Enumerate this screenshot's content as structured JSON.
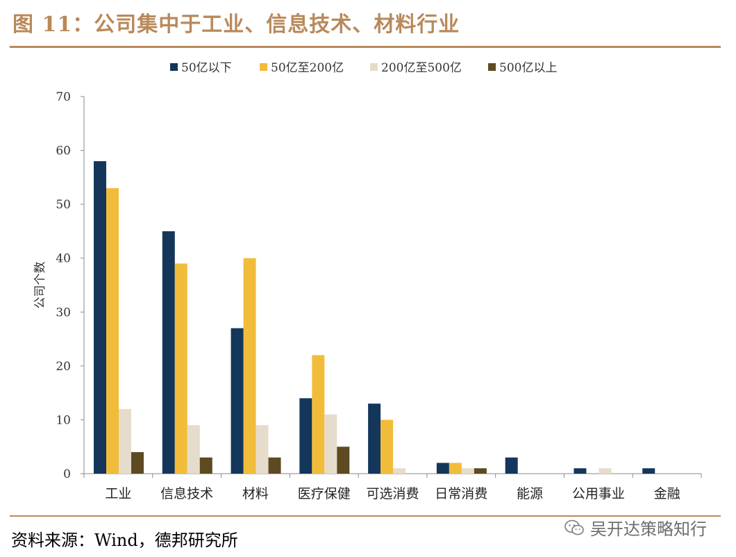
{
  "figure": {
    "title": "图 11：公司集中于工业、信息技术、材料行业",
    "source": "资料来源：Wind，德邦研究所",
    "watermark": "吴开达策略知行",
    "watermark_icon": "wechat-icon"
  },
  "chart_data": {
    "type": "bar",
    "categories": [
      "工业",
      "信息技术",
      "材料",
      "医疗保健",
      "可选消费",
      "日常消费",
      "能源",
      "公用事业",
      "金融"
    ],
    "series": [
      {
        "name": "50亿以下",
        "color": "#14365a",
        "values": [
          58,
          45,
          27,
          14,
          13,
          2,
          3,
          1,
          1
        ]
      },
      {
        "name": "50亿至200亿",
        "color": "#f2bc3b",
        "values": [
          53,
          39,
          40,
          22,
          10,
          2,
          0,
          0,
          0
        ]
      },
      {
        "name": "200亿至500亿",
        "color": "#e6dccb",
        "values": [
          12,
          9,
          9,
          11,
          1,
          1,
          0,
          1,
          0
        ]
      },
      {
        "name": "500亿以上",
        "color": "#5e4a22",
        "values": [
          4,
          3,
          3,
          5,
          0,
          1,
          0,
          0,
          0
        ]
      }
    ],
    "xlabel": "",
    "ylabel": "公司个数",
    "ylim": [
      0,
      70
    ],
    "yticks": [
      0,
      10,
      20,
      30,
      40,
      50,
      60,
      70
    ],
    "grid": false,
    "legend_position": "top-center"
  }
}
